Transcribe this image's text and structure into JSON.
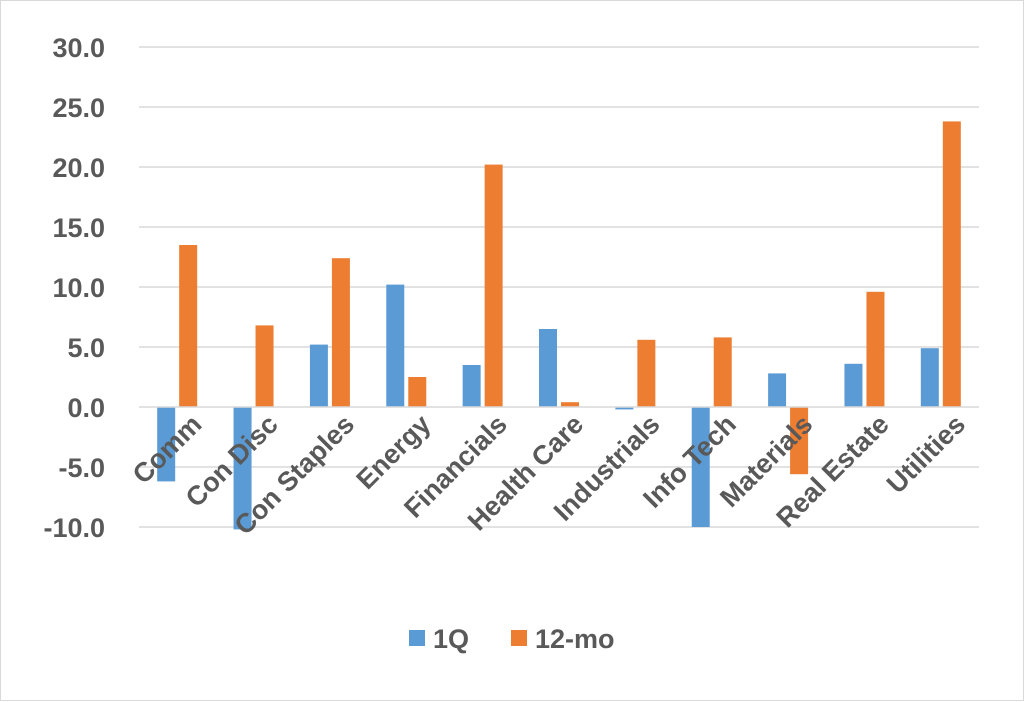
{
  "chart_data": {
    "type": "bar",
    "categories": [
      "Comm",
      "Con Disc",
      "Con Staples",
      "Energy",
      "Financials",
      "Health Care",
      "Industrials",
      "Info Tech",
      "Materials",
      "Real Estate",
      "Utilities"
    ],
    "series": [
      {
        "name": "1Q",
        "color": "#5b9bd5",
        "values": [
          -6.2,
          -10.2,
          5.2,
          10.2,
          3.5,
          6.5,
          -0.2,
          -10.0,
          2.8,
          3.6,
          4.9
        ]
      },
      {
        "name": "12-mo",
        "color": "#ed7d31",
        "values": [
          13.5,
          6.8,
          12.4,
          2.5,
          20.2,
          0.4,
          5.6,
          5.8,
          -5.6,
          9.6,
          23.8
        ]
      }
    ],
    "yticks": [
      "30.0",
      "25.0",
      "20.0",
      "15.0",
      "10.0",
      "5.0",
      "0.0",
      "-5.0",
      "-10.0"
    ],
    "ylim": [
      -10,
      30
    ],
    "grid": true,
    "legend": "bottom",
    "title": "",
    "xlabel": "",
    "ylabel": ""
  }
}
